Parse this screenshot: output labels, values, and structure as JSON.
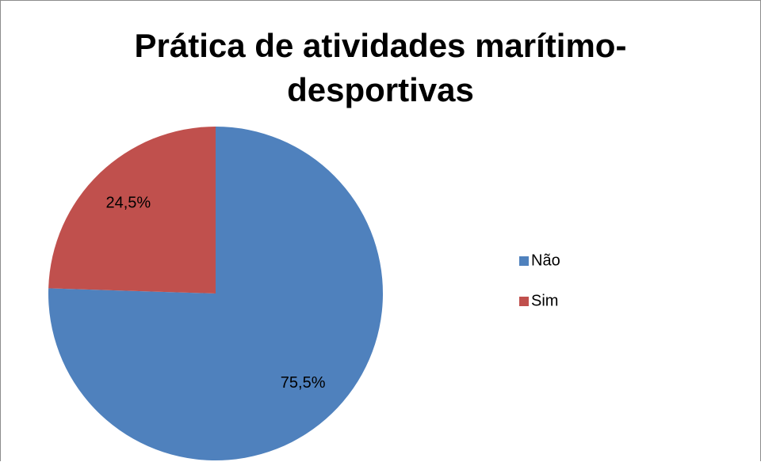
{
  "chart_data": {
    "type": "pie",
    "title": "Prática de atividades marítimo-desportivas",
    "categories": [
      "Não",
      "Sim"
    ],
    "values": [
      75.5,
      24.5
    ],
    "value_labels": [
      "75,5%",
      "24,5%"
    ],
    "colors": [
      "#4f81bd",
      "#c0504d"
    ],
    "legend": "right"
  }
}
